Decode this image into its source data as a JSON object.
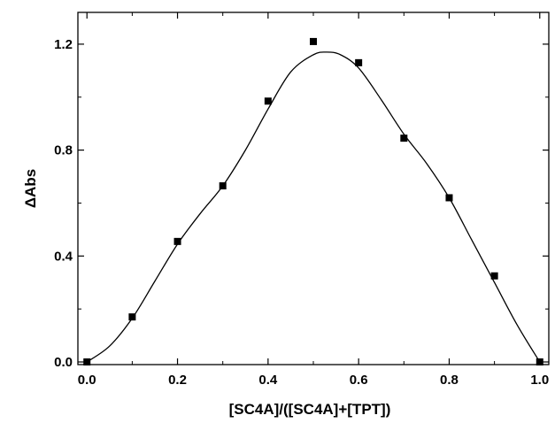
{
  "chart_data": {
    "type": "scatter",
    "xlabel": "[SC4A]/([SC4A]+[TPT])",
    "ylabel": "ΔAbs",
    "xlim": [
      -0.02,
      1.02
    ],
    "ylim": [
      -0.01,
      1.32
    ],
    "xticks": [
      0.0,
      0.2,
      0.4,
      0.6,
      0.8,
      1.0
    ],
    "yticks": [
      0.0,
      0.4,
      0.8,
      1.2
    ],
    "xtick_labels": [
      "0.0",
      "0.2",
      "0.4",
      "0.6",
      "0.8",
      "1.0"
    ],
    "ytick_labels": [
      "0.0",
      "0.4",
      "0.8",
      "1.2"
    ],
    "grid": false,
    "series": [
      {
        "marker": "square",
        "color": "#000000",
        "x": [
          0.0,
          0.1,
          0.2,
          0.3,
          0.4,
          0.5,
          0.6,
          0.7,
          0.8,
          0.9,
          1.0
        ],
        "y": [
          0.0,
          0.17,
          0.455,
          0.665,
          0.985,
          1.21,
          1.13,
          0.845,
          0.62,
          0.325,
          0.0
        ]
      },
      {
        "line": "smooth-fit",
        "color": "#000000",
        "x": [
          0.0,
          0.05,
          0.1,
          0.15,
          0.2,
          0.25,
          0.3,
          0.35,
          0.4,
          0.45,
          0.5,
          0.53,
          0.56,
          0.6,
          0.65,
          0.7,
          0.75,
          0.8,
          0.85,
          0.9,
          0.95,
          1.0
        ],
        "y": [
          0.0,
          0.06,
          0.165,
          0.305,
          0.445,
          0.56,
          0.665,
          0.8,
          0.955,
          1.095,
          1.16,
          1.17,
          1.16,
          1.11,
          0.99,
          0.86,
          0.75,
          0.62,
          0.46,
          0.3,
          0.14,
          0.0
        ]
      }
    ]
  }
}
